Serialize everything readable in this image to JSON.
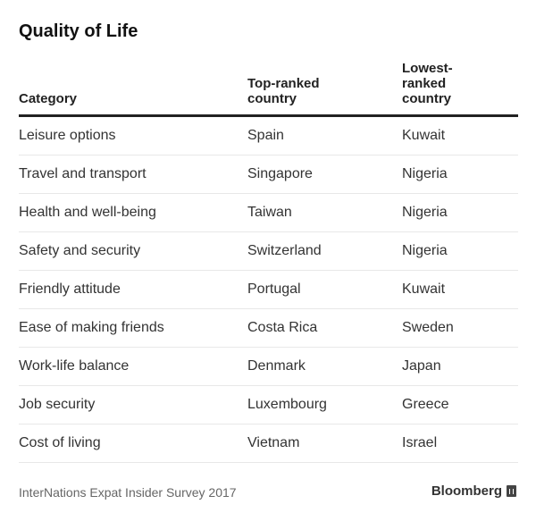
{
  "chart_data": {
    "type": "table",
    "title": "Quality of Life",
    "columns": [
      "Category",
      "Top-ranked country",
      "Lowest-ranked country"
    ],
    "rows": [
      [
        "Leisure options",
        "Spain",
        "Kuwait"
      ],
      [
        "Travel and transport",
        "Singapore",
        "Nigeria"
      ],
      [
        "Health and well-being",
        "Taiwan",
        "Nigeria"
      ],
      [
        "Safety and security",
        "Switzerland",
        "Nigeria"
      ],
      [
        "Friendly attitude",
        "Portugal",
        "Kuwait"
      ],
      [
        "Ease of making friends",
        "Costa Rica",
        "Sweden"
      ],
      [
        "Work-life balance",
        "Denmark",
        "Japan"
      ],
      [
        "Job security",
        "Luxembourg",
        "Greece"
      ],
      [
        "Cost of living",
        "Vietnam",
        "Israel"
      ]
    ]
  },
  "header_lines": {
    "col0": [
      "Category"
    ],
    "col1": [
      "Top-ranked",
      "country"
    ],
    "col2": [
      "Lowest-",
      "ranked",
      "country"
    ]
  },
  "footer": {
    "source": "InterNations Expat Insider Survey 2017",
    "brand": "Bloomberg"
  }
}
